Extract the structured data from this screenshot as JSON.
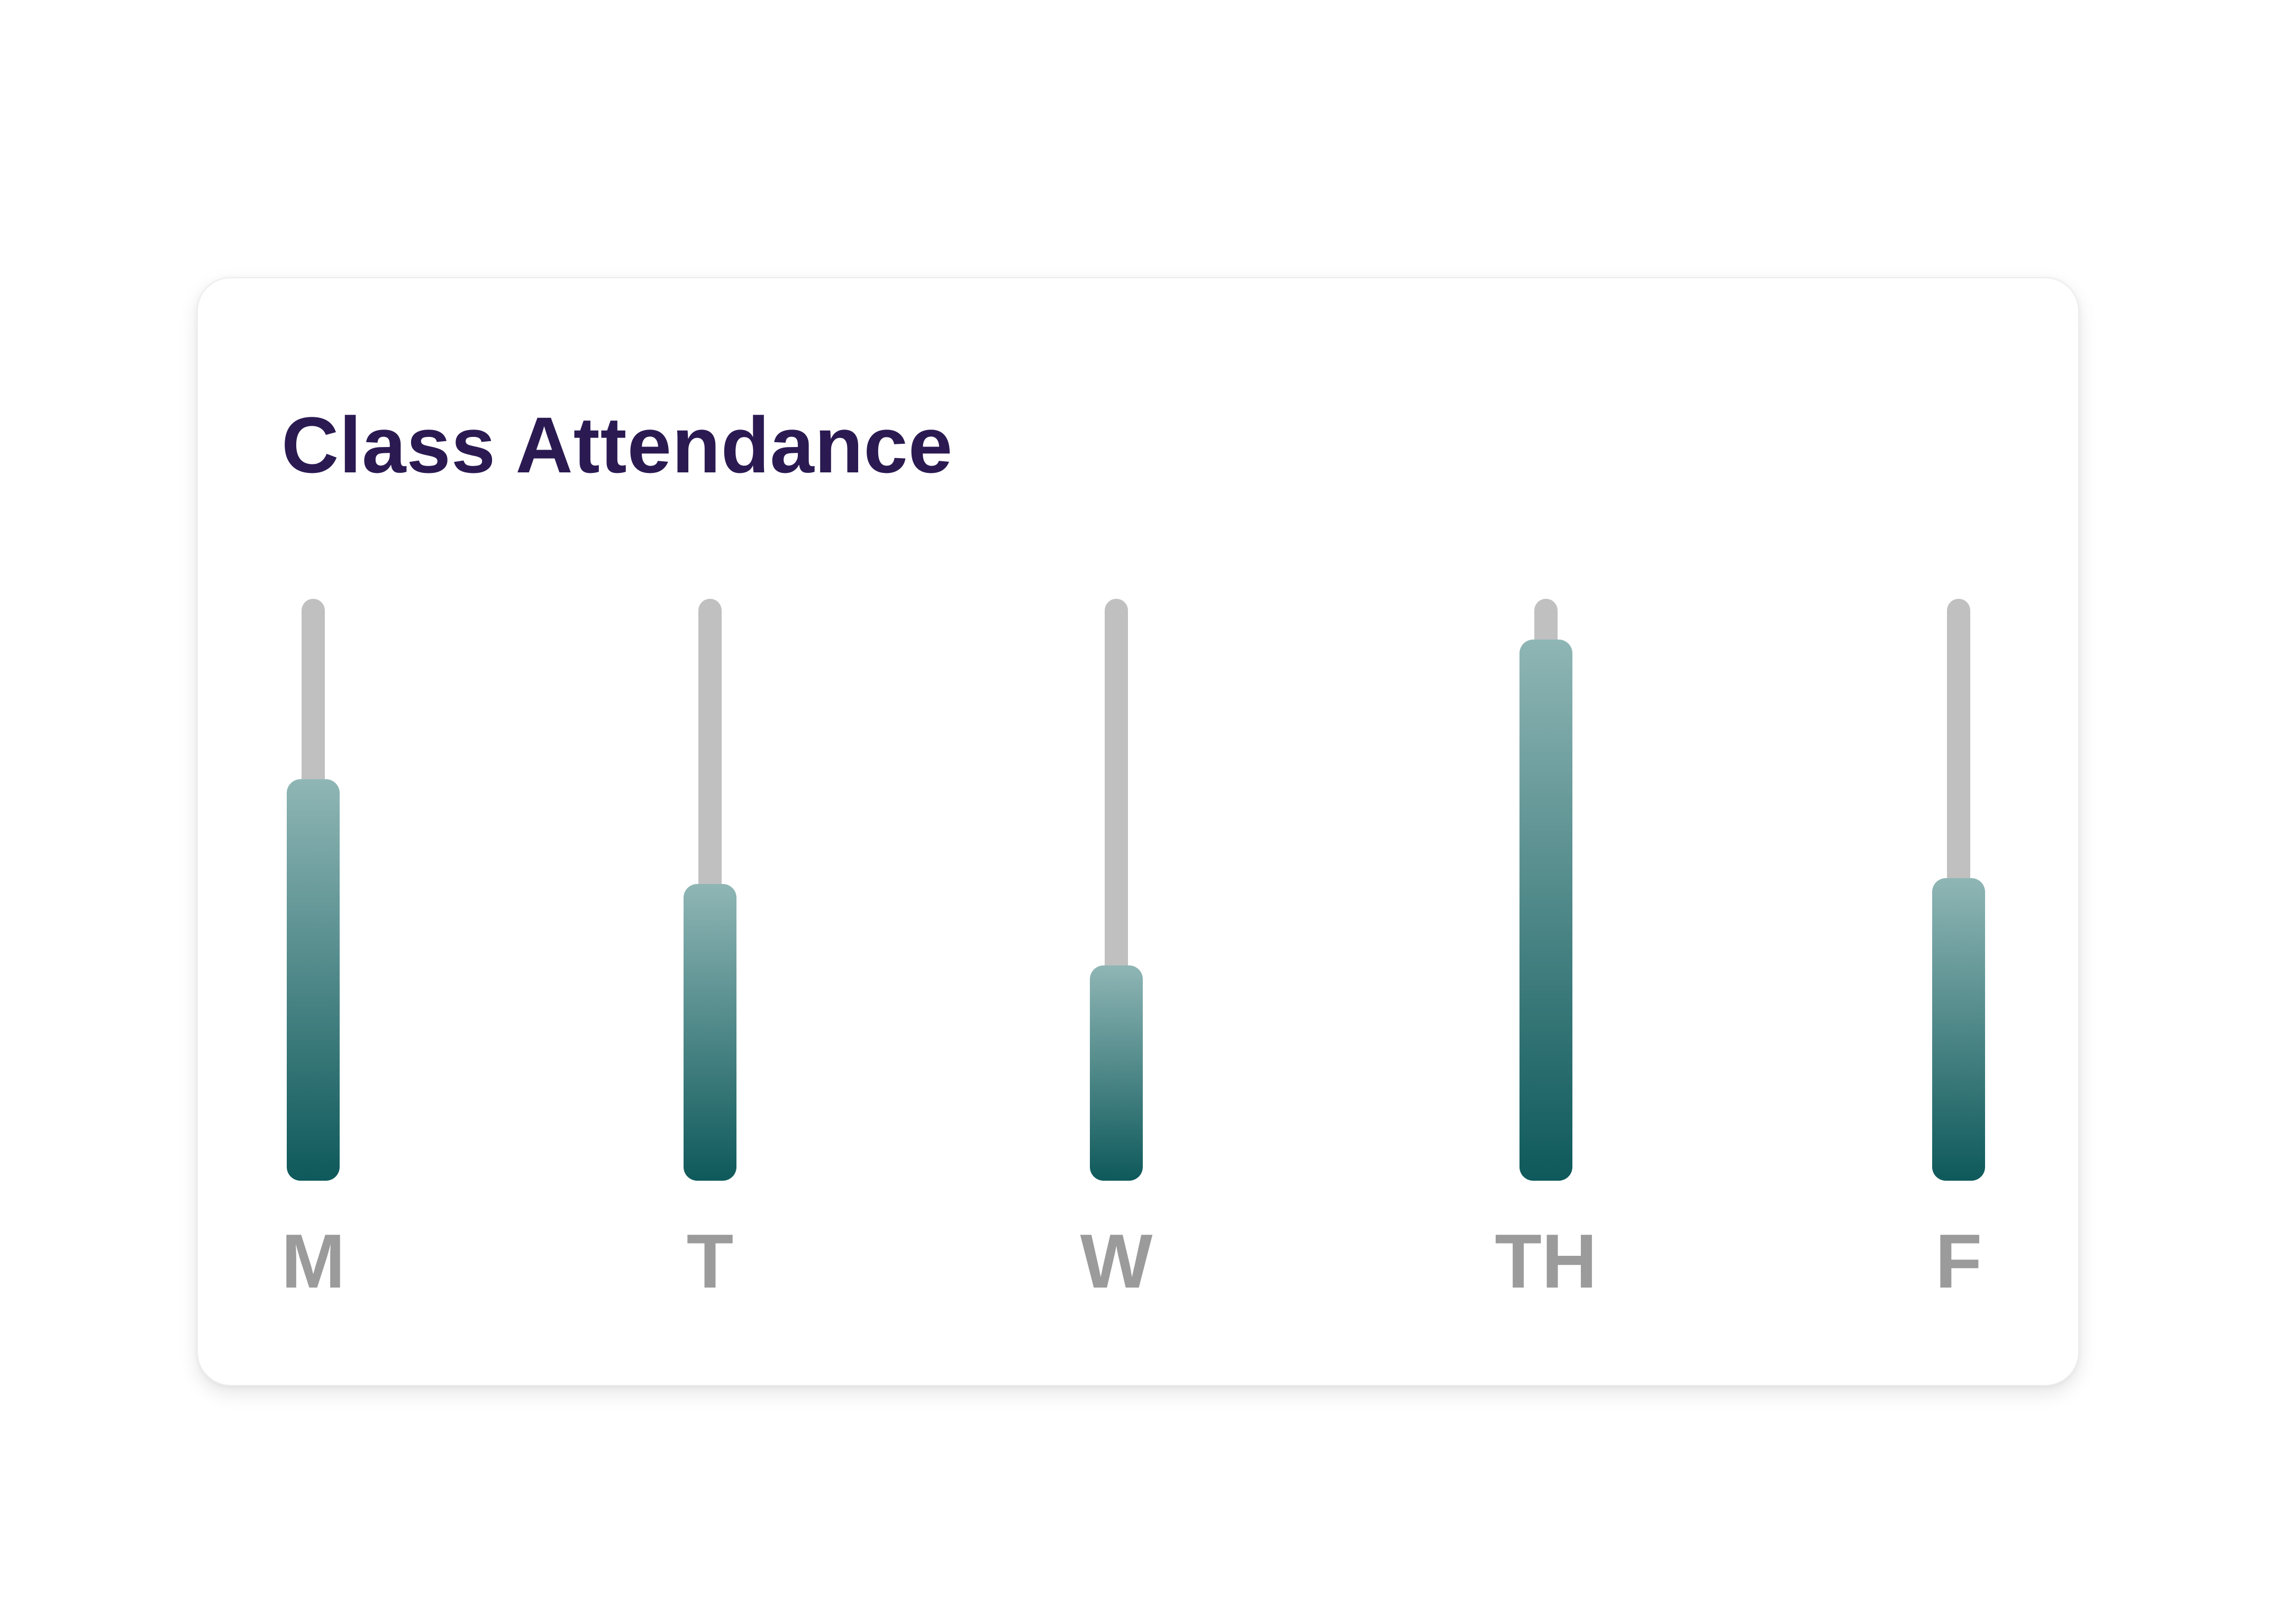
{
  "card": {
    "title": "Class Attendance",
    "title_color": "#2b1a52",
    "background_color": "#ffffff"
  },
  "chart_data": {
    "type": "bar",
    "title": "Class Attendance",
    "categories": [
      "M",
      "T",
      "W",
      "TH",
      "F"
    ],
    "values": [
      69,
      51,
      37,
      93,
      52
    ],
    "unit": "percent",
    "ylim": [
      0,
      100
    ],
    "orientation": "vertical",
    "grid": false,
    "legend": false,
    "track_color": "#c0c0c0",
    "bar_gradient_top": "#8fb6b5",
    "bar_gradient_bottom": "#0e595b",
    "label_color": "#9b9b9b"
  }
}
